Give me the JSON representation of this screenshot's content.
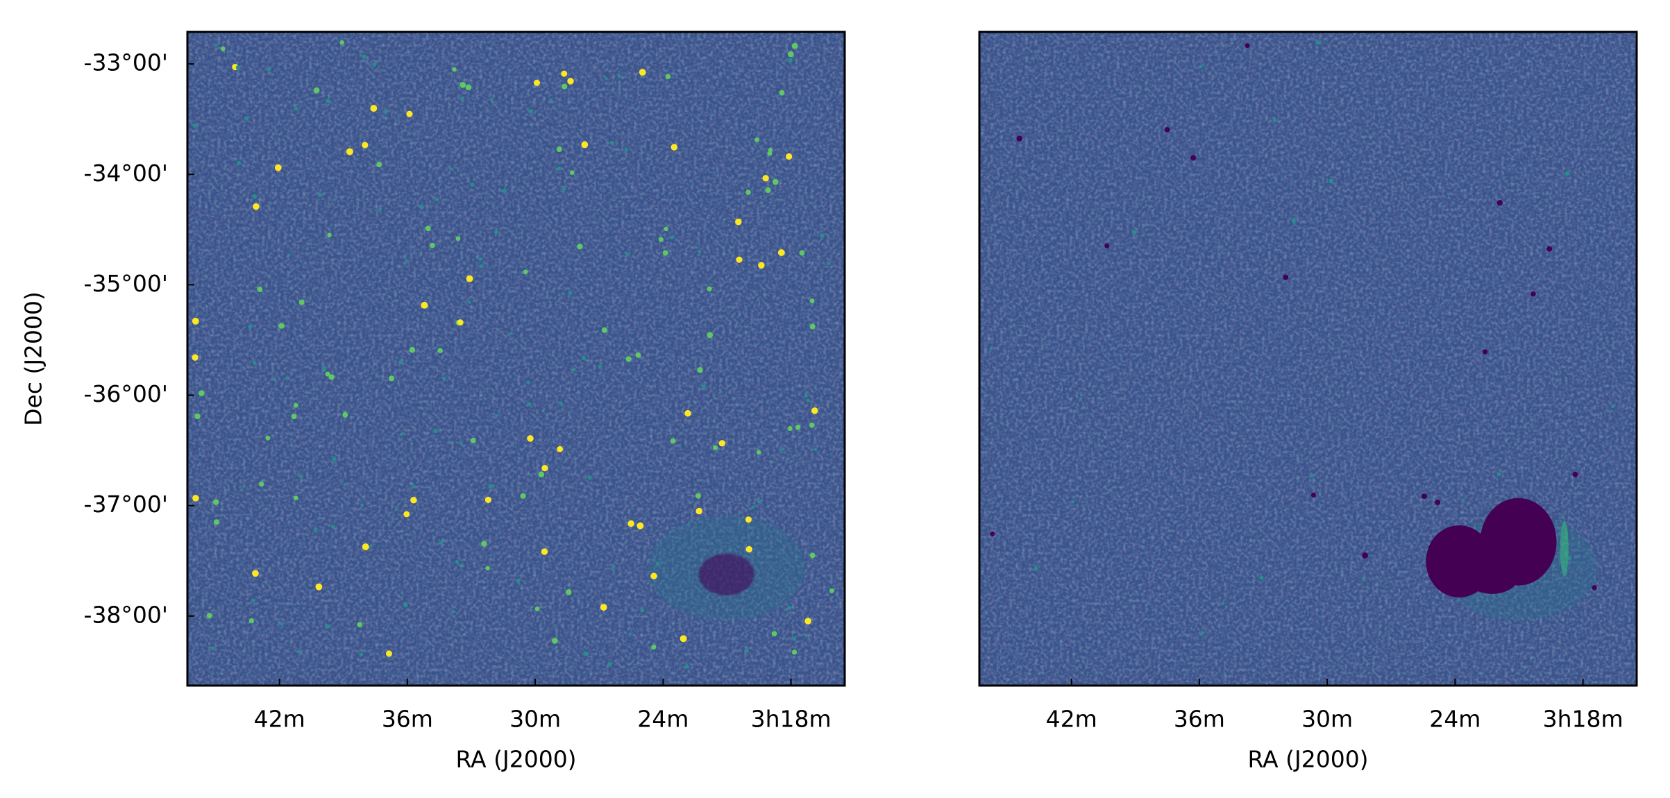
{
  "chart_data": [
    {
      "type": "image",
      "xlabel": "RA (J2000)",
      "ylabel": "Dec (J2000)",
      "xlim": [
        3.772,
        3.258
      ],
      "ylim": [
        -38.63,
        -32.71
      ],
      "xticks": [
        {
          "value": 3.7,
          "label": "42m"
        },
        {
          "value": 3.6,
          "label": "36m"
        },
        {
          "value": 3.5,
          "label": "30m"
        },
        {
          "value": 3.4,
          "label": "24m"
        },
        {
          "value": 3.3,
          "label": "3h18m"
        }
      ],
      "yticks": [
        {
          "value": -33,
          "label": "-33°00'"
        },
        {
          "value": -34,
          "label": "-34°00'"
        },
        {
          "value": -35,
          "label": "-35°00'"
        },
        {
          "value": -36,
          "label": "-36°00'"
        },
        {
          "value": -37,
          "label": "-37°00'"
        },
        {
          "value": -38,
          "label": "-38°00'"
        }
      ]
    },
    {
      "type": "image",
      "xlabel": "RA (J2000)",
      "xlim": [
        3.772,
        3.258
      ],
      "xticks": [
        {
          "value": 3.7,
          "label": "42m"
        },
        {
          "value": 3.6,
          "label": "36m"
        },
        {
          "value": 3.5,
          "label": "30m"
        },
        {
          "value": 3.4,
          "label": "24m"
        },
        {
          "value": 3.3,
          "label": "3h18m"
        }
      ]
    }
  ]
}
